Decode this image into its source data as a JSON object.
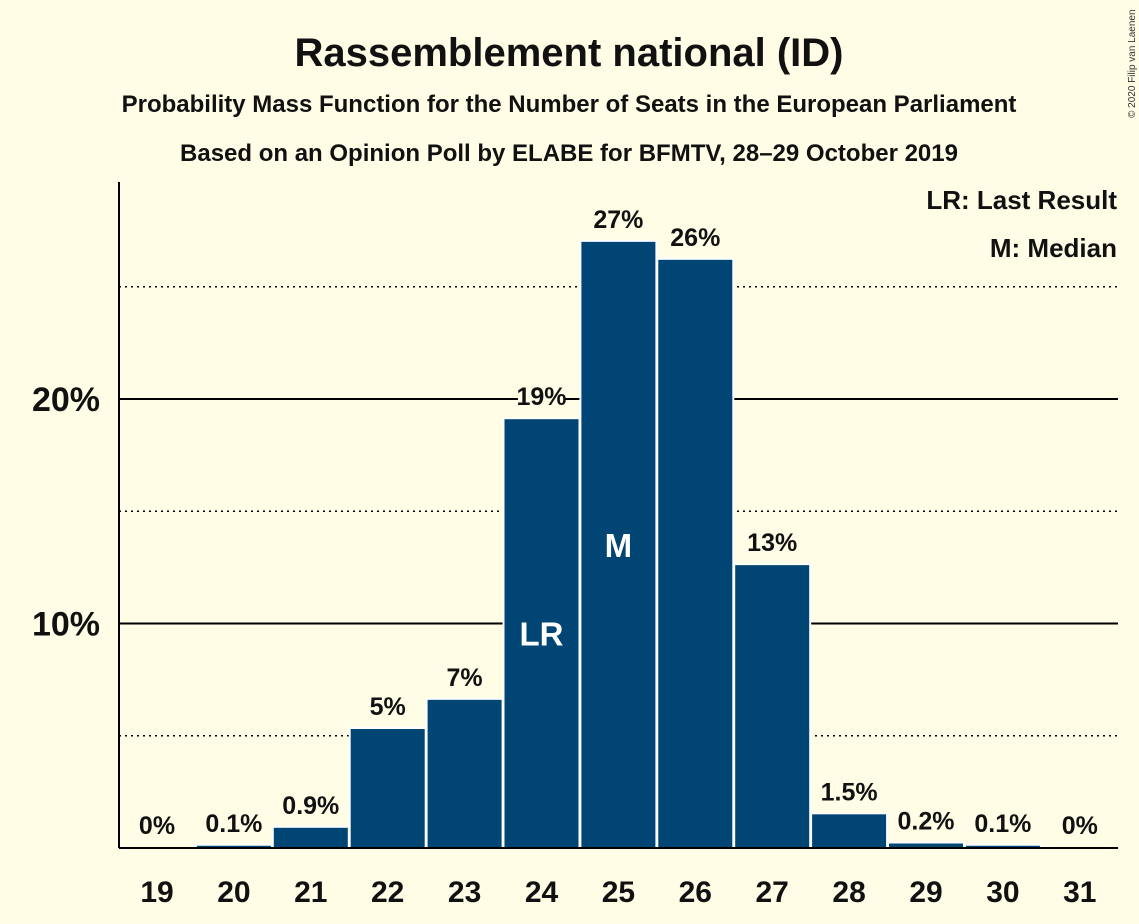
{
  "chart_data": {
    "type": "bar",
    "title": "Rassemblement national (ID)",
    "subtitle_1": "Probability Mass Function for the Number of Seats in the European Parliament",
    "subtitle_2": "Based on an Opinion Poll by ELABE for BFMTV, 28–29 October 2019",
    "copyright": "© 2020 Filip van Laenen",
    "categories": [
      "19",
      "20",
      "21",
      "22",
      "23",
      "24",
      "25",
      "26",
      "27",
      "28",
      "29",
      "30",
      "31"
    ],
    "values": [
      0.0,
      0.1,
      0.9,
      5.3,
      6.6,
      19.1,
      27.0,
      26.2,
      12.6,
      1.5,
      0.2,
      0.1,
      0.0
    ],
    "data_labels": [
      "0%",
      "0.1%",
      "0.9%",
      "5%",
      "7%",
      "19%",
      "27%",
      "26%",
      "13%",
      "1.5%",
      "0.2%",
      "0.1%",
      "0%"
    ],
    "bar_markers": [
      {
        "category": "24",
        "text": "LR"
      },
      {
        "category": "25",
        "text": "M"
      }
    ],
    "y_ticks": [
      {
        "value": 10,
        "label": "10%"
      },
      {
        "value": 20,
        "label": "20%"
      }
    ],
    "minor_gridlines": [
      5,
      15,
      25
    ],
    "ylim": [
      0,
      29.5
    ],
    "legend": {
      "placement": "top-right",
      "entries": [
        "LR: Last Result",
        "M: Median"
      ]
    },
    "colors": {
      "bar": "#004573",
      "background": "#fffde6",
      "grid": "#000000",
      "bar_gap": "#ffffff"
    }
  }
}
